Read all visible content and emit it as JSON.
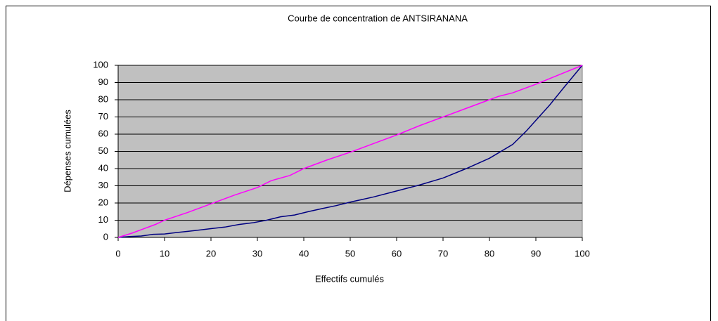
{
  "chart_data": {
    "type": "line",
    "title": "Courbe de concentration de ANTSIRANANA",
    "xlabel": "Effectifs cumulés",
    "ylabel": "Dépenses cumulées",
    "xlim": [
      0,
      100
    ],
    "xticks": [
      0,
      10,
      20,
      30,
      40,
      50,
      60,
      70,
      80,
      90,
      100
    ],
    "ylim": [
      0,
      100
    ],
    "yticks": [
      0,
      10,
      20,
      30,
      40,
      50,
      60,
      70,
      80,
      90,
      100
    ],
    "grid": true,
    "series": [
      {
        "color": "#000080",
        "x": [
          0,
          2.5,
          5,
          7.5,
          10,
          12.5,
          15,
          17.5,
          20,
          23,
          26,
          29,
          32,
          35,
          38,
          41,
          44,
          47,
          50,
          55,
          60,
          65,
          70,
          75,
          80,
          85,
          88,
          90,
          93,
          96,
          100
        ],
        "values": [
          0,
          0.5,
          0.8,
          1.8,
          2,
          2.8,
          3.5,
          4.3,
          5.1,
          6,
          7.5,
          8.5,
          10,
          12,
          13,
          15,
          16.8,
          18.5,
          20.5,
          23.5,
          27,
          30.5,
          34.5,
          40,
          46,
          54,
          62,
          68,
          77,
          87,
          100
        ]
      },
      {
        "color": "#ff00ff",
        "x": [
          0,
          3,
          5,
          8,
          10,
          15,
          20,
          25,
          30,
          33,
          37,
          40,
          45,
          50,
          55,
          60,
          65,
          70,
          75,
          80,
          82,
          85,
          88,
          90,
          95,
          100
        ],
        "values": [
          0,
          2.5,
          4.5,
          7.5,
          10,
          14.5,
          19.5,
          24.5,
          29,
          33,
          36,
          40,
          45,
          49.5,
          54.5,
          59.5,
          65,
          70,
          75,
          80,
          82,
          84,
          87,
          89,
          94.5,
          100
        ]
      }
    ]
  }
}
